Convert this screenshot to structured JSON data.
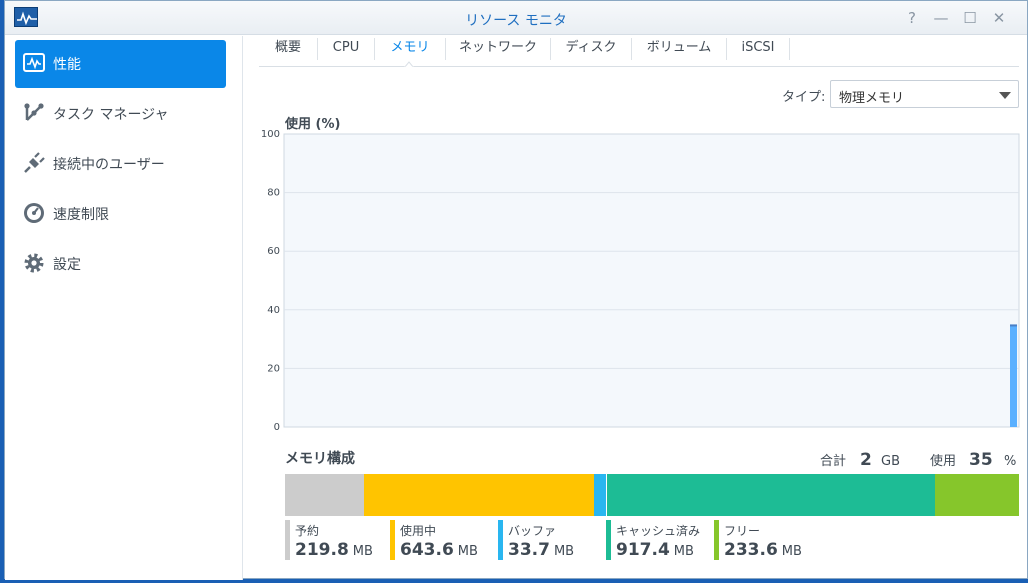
{
  "window": {
    "title": "リソース モニタ"
  },
  "title_buttons": [
    "?",
    "—",
    "☐",
    "✕"
  ],
  "sidebar": {
    "items": [
      {
        "label": "性能",
        "icon": "performance-icon",
        "active": true
      },
      {
        "label": "タスク マネージャ",
        "icon": "task-manager-icon",
        "active": false
      },
      {
        "label": "接続中のユーザー",
        "icon": "plug-icon",
        "active": false
      },
      {
        "label": "速度制限",
        "icon": "speedometer-icon",
        "active": false
      },
      {
        "label": "設定",
        "icon": "gear-icon",
        "active": false
      }
    ]
  },
  "tabs": [
    "概要",
    "CPU",
    "メモリ",
    "ネットワーク",
    "ディスク",
    "ボリューム",
    "iSCSI"
  ],
  "active_tab": "メモリ",
  "type_filter": {
    "label": "タイプ:",
    "value": "物理メモリ"
  },
  "chart": {
    "title": "使用 (%)"
  },
  "chart_data": {
    "type": "bar",
    "title": "",
    "ylabel": "使用 (%)",
    "ylim": [
      0,
      100
    ],
    "yticks": [
      "100",
      "80",
      "60",
      "40",
      "20",
      "0"
    ],
    "series": [
      {
        "values": [
          35
        ]
      }
    ],
    "grid": true,
    "colors": {
      "bar": "#5ab0ff",
      "bar_top": "#4a7fc6"
    }
  },
  "composition": {
    "title": "メモリ構成",
    "total_label": "合計",
    "total_value": "2",
    "total_unit": "GB",
    "used_label": "使用",
    "used_value": "35",
    "used_unit": "%",
    "segments": [
      {
        "label": "予約",
        "value": "219.8",
        "unit": "MB",
        "amount": 219.8,
        "color": "#cccccc"
      },
      {
        "label": "使用中",
        "value": "643.6",
        "unit": "MB",
        "amount": 643.6,
        "color": "#ffc400"
      },
      {
        "label": "バッファ",
        "value": "33.7",
        "unit": "MB",
        "amount": 33.7,
        "color": "#29b6f0"
      },
      {
        "label": "キャッシュ済み",
        "value": "917.4",
        "unit": "MB",
        "amount": 917.4,
        "color": "#1dbc95"
      },
      {
        "label": "フリー",
        "value": "233.6",
        "unit": "MB",
        "amount": 233.6,
        "color": "#86c62b"
      }
    ]
  },
  "colors": {
    "accent": "#0a87e8",
    "title": "#1f6fc0"
  }
}
